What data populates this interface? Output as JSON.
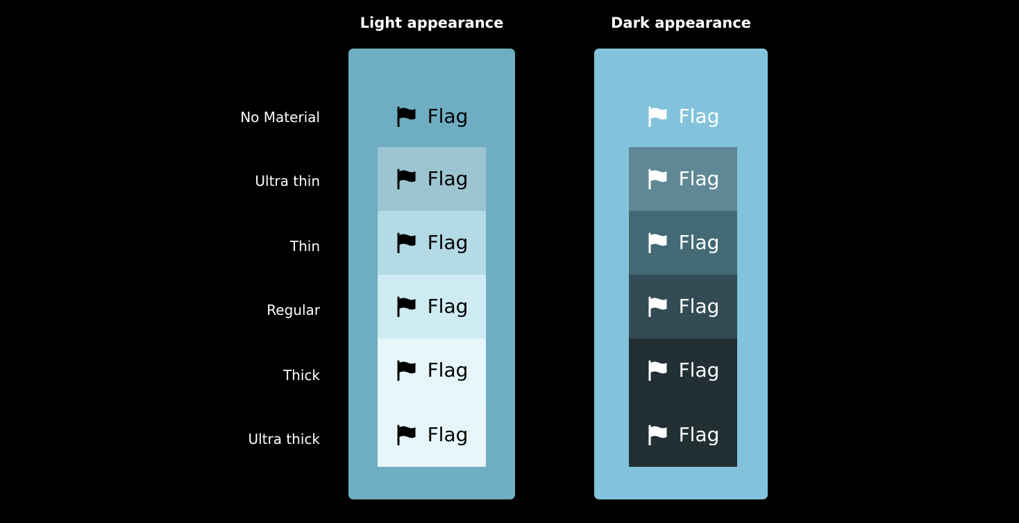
{
  "columns": {
    "light": {
      "title": "Light appearance",
      "panel_color": "#6fadc2",
      "text_color": "#000000"
    },
    "dark": {
      "title": "Dark appearance",
      "panel_color": "#82c3db",
      "text_color": "#ffffff"
    }
  },
  "rows": [
    {
      "label": "No Material",
      "light_color": "",
      "dark_color": "",
      "cell_text": "Flag",
      "icon": "flag-icon"
    },
    {
      "label": "Ultra thin",
      "light_color": "#9cc5d1",
      "dark_color": "#5f8896",
      "cell_text": "Flag",
      "icon": "flag-icon"
    },
    {
      "label": "Thin",
      "light_color": "#b4dae6",
      "dark_color": "#436a74",
      "cell_text": "Flag",
      "icon": "flag-icon"
    },
    {
      "label": "Regular",
      "light_color": "#cfebf3",
      "dark_color": "#324b55",
      "cell_text": "Flag",
      "icon": "flag-icon"
    },
    {
      "label": "Thick",
      "light_color": "#e6f6fa",
      "dark_color": "#222f34",
      "cell_text": "Flag",
      "icon": "flag-icon"
    },
    {
      "label": "Ultra thick",
      "light_color": "#e7f6fa",
      "dark_color": "#223034",
      "cell_text": "Flag",
      "icon": "flag-icon"
    }
  ]
}
